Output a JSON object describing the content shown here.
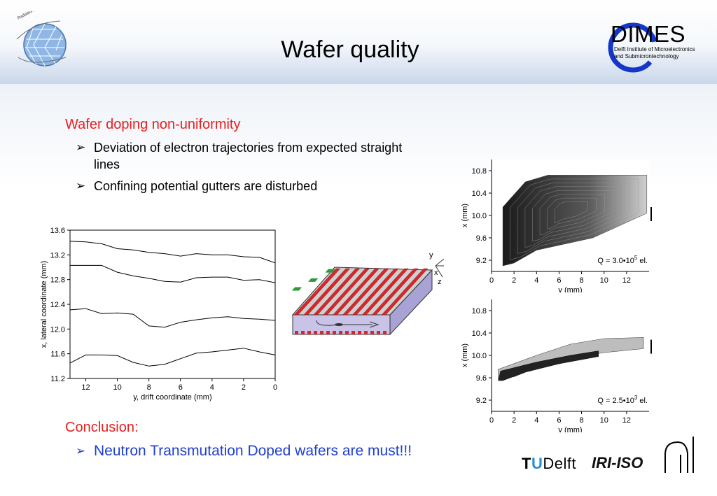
{
  "slide": {
    "title": "Wafer quality",
    "dimes": {
      "name": "DIMES",
      "sub1": "Delft Institute of Microelectronics",
      "sub2": "and Submicrontechnology"
    },
    "section1": {
      "heading": "Wafer doping non-uniformity",
      "bullets": [
        "Deviation of electron trajectories from expected straight lines",
        "Confining potential gutters are disturbed"
      ]
    },
    "conclusion": {
      "heading": "Conclusion:",
      "bullet": "Neutron Transmutation Doped wafers are must!!!"
    },
    "footer": {
      "tu": "T",
      "u": "U",
      "delft": "Delft",
      "iri": "IRI-ISO"
    },
    "schematic_axes": {
      "y": "y",
      "x": "x",
      "z": "z"
    },
    "colors": {
      "red_heading": "#ea1f1f",
      "blue_bullet": "#1e3fd0",
      "strip_red": "#d9262b",
      "strip_green": "#2e9a3a",
      "wafer_side": "#c9c3e8"
    }
  },
  "chart_data": [
    {
      "type": "line",
      "xlabel": "y, drift coordinate (mm)",
      "ylabel": "x, lateral coordinate (mm)",
      "xlim": [
        13,
        0
      ],
      "ylim": [
        11.2,
        13.6
      ],
      "xticks": [
        12,
        10,
        8,
        6,
        4,
        2,
        0
      ],
      "yticks": [
        11.2,
        11.6,
        12.0,
        12.4,
        12.8,
        13.2,
        13.6
      ],
      "series": [
        {
          "x": [
            13,
            12,
            11,
            10,
            9,
            8,
            7,
            6,
            5,
            4,
            3,
            2,
            1,
            0
          ],
          "values": [
            13.42,
            13.41,
            13.38,
            13.3,
            13.28,
            13.24,
            13.22,
            13.18,
            13.22,
            13.2,
            13.2,
            13.17,
            13.16,
            13.07
          ]
        },
        {
          "x": [
            13,
            12,
            11,
            10,
            9,
            8,
            7,
            6,
            5,
            4,
            3,
            2,
            1,
            0
          ],
          "values": [
            13.03,
            13.03,
            13.03,
            12.92,
            12.86,
            12.82,
            12.77,
            12.76,
            12.83,
            12.84,
            12.84,
            12.79,
            12.8,
            12.75
          ]
        },
        {
          "x": [
            13,
            12,
            11,
            10,
            9,
            8,
            7,
            6,
            5,
            4,
            3,
            2,
            1,
            0
          ],
          "values": [
            12.31,
            12.33,
            12.25,
            12.26,
            12.24,
            12.05,
            12.03,
            12.11,
            12.15,
            12.18,
            12.2,
            12.17,
            12.16,
            12.14
          ]
        },
        {
          "x": [
            13,
            12,
            11,
            10,
            9,
            8,
            7,
            6,
            5,
            4,
            3,
            2,
            1,
            0
          ],
          "values": [
            11.45,
            11.58,
            11.58,
            11.57,
            11.46,
            11.4,
            11.43,
            11.52,
            11.61,
            11.63,
            11.66,
            11.69,
            11.63,
            11.58
          ]
        }
      ]
    },
    {
      "type": "heatmap",
      "xlabel": "y (mm)",
      "ylabel": "x (mm)",
      "xlim": [
        0,
        14
      ],
      "ylim": [
        9.0,
        11.0
      ],
      "xticks": [
        0,
        2,
        4,
        6,
        8,
        10,
        12
      ],
      "yticks": [
        9.2,
        9.6,
        10.0,
        10.4,
        10.8
      ],
      "annotation": "Q =  3.0•10",
      "annotation_exp": "5",
      "annotation_unit": "el."
    },
    {
      "type": "heatmap",
      "xlabel": "y (mm)",
      "ylabel": "x (mm)",
      "xlim": [
        0,
        14
      ],
      "ylim": [
        9.0,
        11.0
      ],
      "xticks": [
        0,
        2,
        4,
        6,
        8,
        10,
        12
      ],
      "yticks": [
        9.2,
        9.6,
        10.0,
        10.4,
        10.8
      ],
      "annotation": "Q =  2.5•10",
      "annotation_exp": "3",
      "annotation_unit": "el."
    }
  ]
}
